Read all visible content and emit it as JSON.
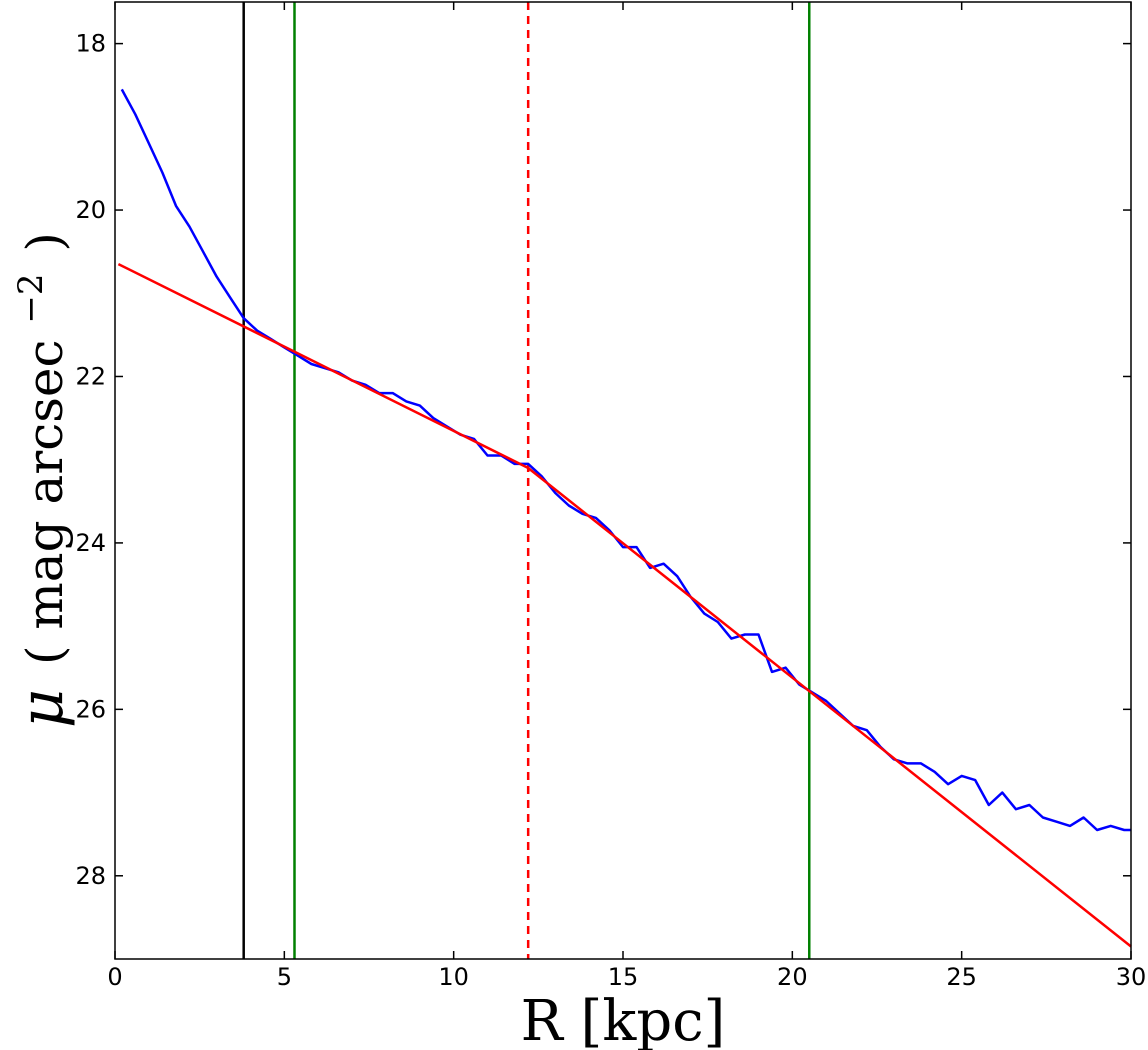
{
  "chart_data": {
    "type": "line",
    "xlabel": "R [kpc]",
    "ylabel": "μ (mag arcsec⁻²)",
    "ylabel_parts": {
      "mu": "μ",
      "open": "(",
      "text": "mag arcsec",
      "sup": "−2",
      "close": ")"
    },
    "xlim": [
      0,
      30
    ],
    "ylim": [
      29.0,
      17.5
    ],
    "y_inverted": true,
    "grid": false,
    "x_ticks": [
      0,
      5,
      10,
      15,
      20,
      25,
      30
    ],
    "y_ticks": [
      18,
      20,
      22,
      24,
      26,
      28
    ],
    "series": [
      {
        "style": "solid",
        "color": "#0000ff",
        "x": [
          0.2,
          0.6,
          1.0,
          1.4,
          1.8,
          2.2,
          2.6,
          3.0,
          3.4,
          3.8,
          4.2,
          4.6,
          5.0,
          5.4,
          5.8,
          6.2,
          6.6,
          7.0,
          7.4,
          7.8,
          8.2,
          8.6,
          9.0,
          9.4,
          9.8,
          10.2,
          10.6,
          11.0,
          11.4,
          11.8,
          12.2,
          12.6,
          13.0,
          13.4,
          13.8,
          14.2,
          14.6,
          15.0,
          15.4,
          15.8,
          16.2,
          16.6,
          17.0,
          17.4,
          17.8,
          18.2,
          18.6,
          19.0,
          19.4,
          19.8,
          20.2,
          20.6,
          21.0,
          21.4,
          21.8,
          22.2,
          22.6,
          23.0,
          23.4,
          23.8,
          24.2,
          24.6,
          25.0,
          25.4,
          25.8,
          26.2,
          26.6,
          27.0,
          27.4,
          27.8,
          28.2,
          28.6,
          29.0,
          29.4,
          29.8,
          30.0
        ],
        "y": [
          18.55,
          18.85,
          19.2,
          19.55,
          19.95,
          20.2,
          20.5,
          20.8,
          21.05,
          21.3,
          21.45,
          21.55,
          21.65,
          21.75,
          21.85,
          21.9,
          21.95,
          22.05,
          22.1,
          22.2,
          22.2,
          22.3,
          22.35,
          22.5,
          22.6,
          22.7,
          22.75,
          22.95,
          22.95,
          23.05,
          23.05,
          23.2,
          23.4,
          23.55,
          23.65,
          23.7,
          23.85,
          24.05,
          24.05,
          24.3,
          24.25,
          24.4,
          24.65,
          24.85,
          24.95,
          25.15,
          25.1,
          25.1,
          25.55,
          25.5,
          25.7,
          25.8,
          25.9,
          26.05,
          26.2,
          26.25,
          26.45,
          26.6,
          26.65,
          26.65,
          26.75,
          26.9,
          26.8,
          26.85,
          27.15,
          27.0,
          27.2,
          27.15,
          27.3,
          27.35,
          27.4,
          27.3,
          27.45,
          27.4,
          27.45,
          27.45
        ]
      },
      {
        "style": "solid",
        "color": "#ff0000",
        "x": [
          0.1,
          12.2,
          30.0
        ],
        "y": [
          20.65,
          23.1,
          28.85
        ]
      }
    ],
    "vlines": [
      {
        "x": 3.8,
        "color": "#000000",
        "style": "solid"
      },
      {
        "x": 5.3,
        "color": "#008000",
        "style": "solid"
      },
      {
        "x": 12.2,
        "color": "#ff0000",
        "style": "dashed"
      },
      {
        "x": 20.5,
        "color": "#008000",
        "style": "solid"
      }
    ]
  }
}
